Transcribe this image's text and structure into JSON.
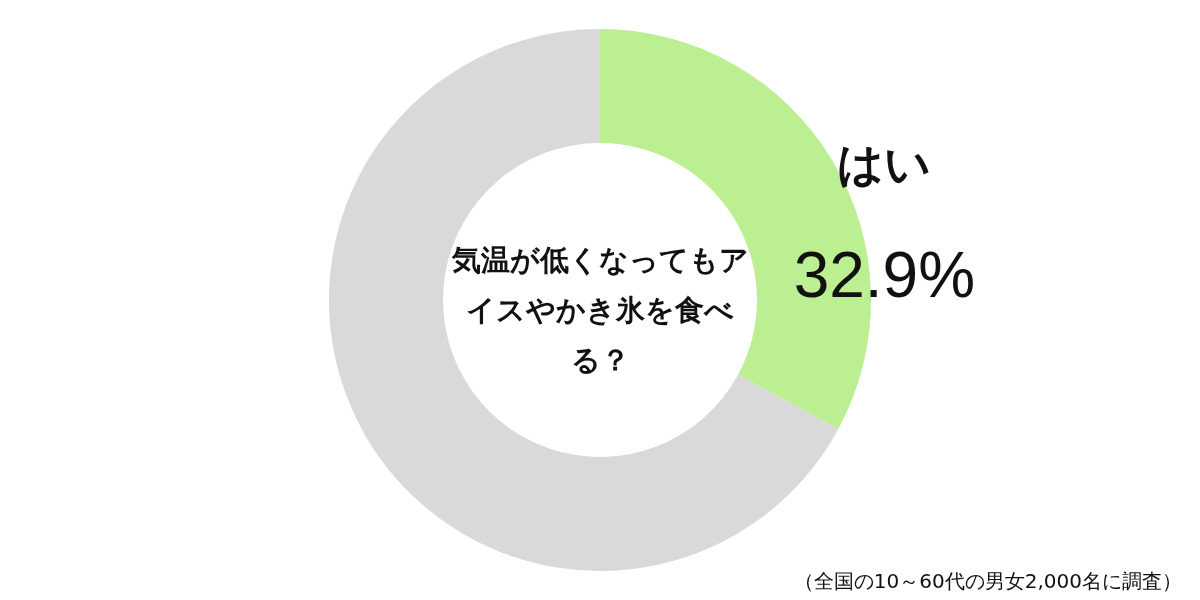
{
  "chart_data": {
    "type": "donut",
    "title": "気温が低くなってもアイスやかき氷を食べる？",
    "categories": [
      "はい",
      null
    ],
    "values": [
      32.9,
      67.1
    ],
    "colors": [
      "#bcee92",
      "#d9d9d9"
    ],
    "value_labels": [
      "32.9%",
      null
    ],
    "annotations": [
      "（全国の10～60代の男女2,000名に調査）"
    ]
  }
}
